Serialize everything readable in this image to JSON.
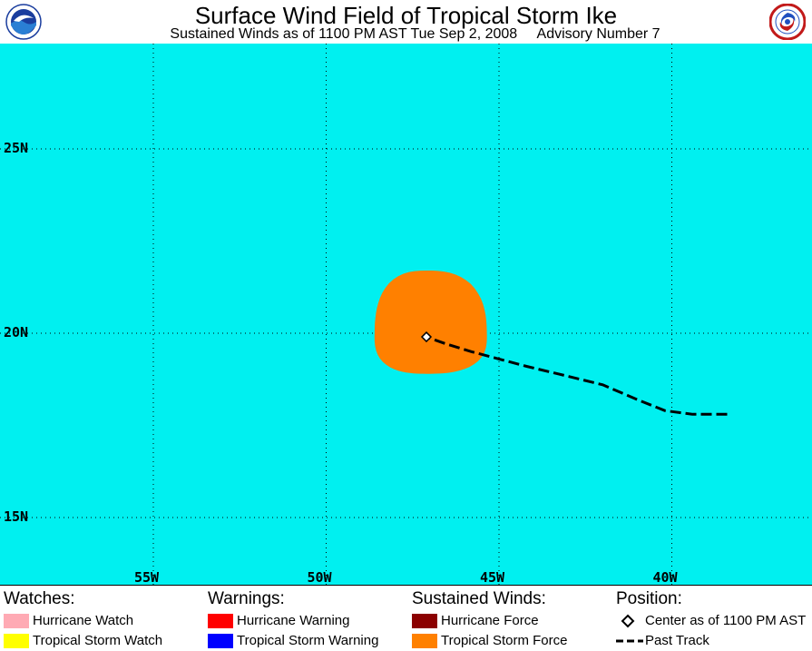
{
  "header": {
    "title": "Surface Wind Field of Tropical Storm Ike",
    "subtitle": "Sustained Winds as of 1100 PM AST Tue Sep 2, 2008     Advisory Number 7"
  },
  "logos": {
    "left": {
      "name": "NOAA",
      "text": "NOAA",
      "colors": {
        "ring": "#ffffff",
        "sky": "#1a3d9e",
        "bird": "#ffffff",
        "water": "#2a7fd4"
      }
    },
    "right": {
      "name": "National Weather Service",
      "text": "NATIONAL WEATHER SERVICE",
      "colors": {
        "ring": "#c21a1a",
        "inner": "#ffffff",
        "swirl": "#1f4fbf"
      }
    }
  },
  "map": {
    "ocean_color": "#00f0f0",
    "grid": "dotted",
    "lat_labels": [
      "25N",
      "20N",
      "15N"
    ],
    "lon_labels": [
      "55W",
      "50W",
      "45W",
      "40W"
    ],
    "lat_ticks": [
      25,
      20,
      15
    ],
    "lon_ticks": [
      -55,
      -50,
      -45,
      -40
    ],
    "storm_center": {
      "lat": 19.9,
      "lon": -47.1,
      "symbol": "diamond",
      "color": "#ffffff"
    },
    "wind_field": {
      "category": "Tropical Storm Force",
      "color": "#ff8000",
      "radius_deg": {
        "N": 1.8,
        "E": 1.75,
        "S": 1.0,
        "W": 1.5
      }
    },
    "past_track": {
      "style": "dashed",
      "color": "#000000",
      "points": [
        {
          "lat": 17.8,
          "lon": -38.4
        },
        {
          "lat": 17.8,
          "lon": -39.4
        },
        {
          "lat": 17.9,
          "lon": -40.2
        },
        {
          "lat": 18.2,
          "lon": -41.0
        },
        {
          "lat": 18.6,
          "lon": -42.0
        },
        {
          "lat": 18.9,
          "lon": -43.3
        },
        {
          "lat": 19.1,
          "lon": -44.2
        },
        {
          "lat": 19.3,
          "lon": -45.0
        },
        {
          "lat": 19.5,
          "lon": -45.8
        },
        {
          "lat": 19.7,
          "lon": -46.5
        },
        {
          "lat": 19.9,
          "lon": -47.1
        }
      ]
    }
  },
  "legend": {
    "watches": {
      "heading": "Watches:",
      "items": [
        {
          "label": "Hurricane Watch",
          "color": "#ffaab4"
        },
        {
          "label": "Tropical Storm Watch",
          "color": "#ffff00"
        }
      ]
    },
    "warnings": {
      "heading": "Warnings:",
      "items": [
        {
          "label": "Hurricane Warning",
          "color": "#ff0000"
        },
        {
          "label": "Tropical Storm Warning",
          "color": "#0000ff"
        }
      ]
    },
    "winds": {
      "heading": "Sustained Winds:",
      "items": [
        {
          "label": "Hurricane Force",
          "color": "#8b0000"
        },
        {
          "label": "Tropical Storm Force",
          "color": "#ff8000"
        }
      ]
    },
    "position": {
      "heading": "Position:",
      "items": [
        {
          "label": "Center as of 1100 PM AST",
          "icon": "diamond-icon"
        },
        {
          "label": "Past Track",
          "icon": "dashed-line-icon"
        }
      ]
    }
  }
}
